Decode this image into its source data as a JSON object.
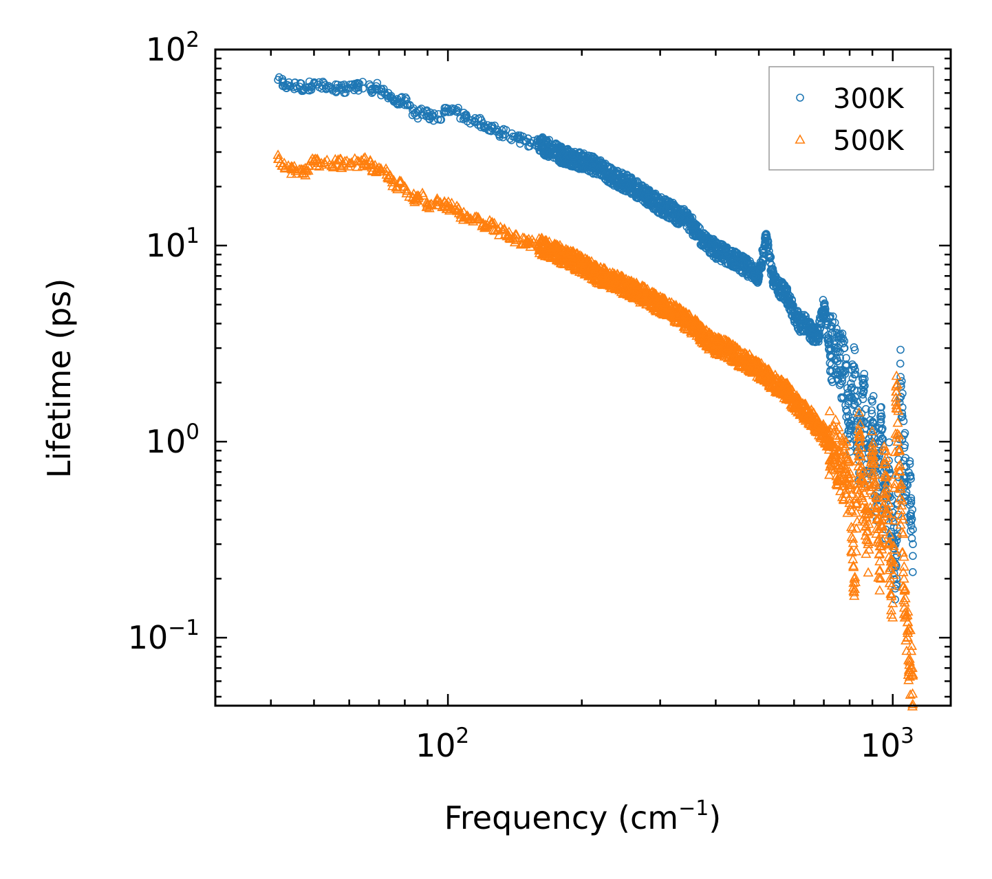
{
  "chart_data": {
    "type": "scatter",
    "title": "",
    "xlabel": "Frequency (cm",
    "xlabel_sup": "−1",
    "xlabel_end": ")",
    "ylabel": "Lifetime (ps)",
    "xscale": "log",
    "yscale": "log",
    "xlim": [
      30,
      1350
    ],
    "ylim": [
      0.045,
      100
    ],
    "x_ticks": [
      {
        "value": 100,
        "base": "10",
        "exp": "2"
      },
      {
        "value": 1000,
        "base": "10",
        "exp": "3"
      }
    ],
    "y_ticks": [
      {
        "value": 0.1,
        "base": "10",
        "exp": "−1"
      },
      {
        "value": 1,
        "base": "10",
        "exp": "0"
      },
      {
        "value": 10,
        "base": "10",
        "exp": "1"
      },
      {
        "value": 100,
        "base": "10",
        "exp": "2"
      }
    ],
    "legend_position": "top-right",
    "series": [
      {
        "name": "300K",
        "marker": "circle",
        "color": "#1f77b4",
        "x": [
          41.5,
          43,
          43.5,
          45.5,
          48,
          50,
          55,
          67,
          67.5,
          69,
          70,
          73,
          73.5,
          75,
          76,
          77,
          78,
          80,
          81,
          85,
          88,
          90,
          95,
          100,
          105,
          110,
          115,
          120,
          125,
          130,
          140,
          150,
          160,
          170,
          180,
          190,
          200,
          210,
          220,
          230,
          240,
          250,
          260,
          270,
          280,
          290,
          300,
          310,
          320,
          330,
          340,
          350,
          360,
          370,
          380,
          390,
          400,
          420,
          440,
          460,
          480,
          500,
          520,
          540,
          560,
          580,
          600,
          620,
          640,
          660,
          680,
          700,
          720,
          740,
          760,
          780,
          800,
          820,
          840,
          860,
          880,
          900,
          920,
          940,
          960,
          980,
          1000,
          1020,
          1040,
          1060,
          1080,
          1100,
          1110
        ],
        "y": [
          70,
          65,
          66,
          65,
          64,
          67,
          63,
          65,
          60,
          65,
          62,
          58,
          60,
          56,
          55,
          53,
          54,
          55,
          52,
          46,
          48,
          47,
          44,
          50,
          48,
          45,
          43,
          42,
          40,
          38,
          36,
          34,
          33,
          31,
          29,
          28,
          27,
          26,
          25,
          23,
          22,
          21,
          20,
          19,
          18,
          17,
          16,
          15.5,
          15,
          14,
          14,
          13,
          12,
          11,
          10.5,
          10,
          9.5,
          9,
          8.5,
          8,
          7.5,
          7,
          11,
          6.5,
          6,
          5.5,
          4.5,
          4,
          4,
          3.5,
          3.5,
          5,
          3,
          3,
          2.5,
          2.3,
          1.2,
          2.2,
          0.8,
          1.8,
          0.6,
          1.6,
          0.5,
          1.3,
          0.4,
          0.8,
          0.3,
          0.2,
          2.5,
          0.8,
          0.6,
          0.5,
          0.3
        ]
      },
      {
        "name": "500K",
        "marker": "triangle",
        "color": "#ff7f0e",
        "x": [
          41.5,
          43,
          45.5,
          48,
          50,
          55,
          67,
          67.5,
          69,
          70,
          73,
          73.5,
          75,
          76,
          77,
          78,
          80,
          81,
          85,
          88,
          90,
          95,
          100,
          105,
          110,
          115,
          120,
          125,
          130,
          140,
          150,
          160,
          170,
          180,
          190,
          200,
          210,
          220,
          230,
          240,
          250,
          260,
          270,
          280,
          290,
          300,
          310,
          320,
          330,
          340,
          350,
          360,
          370,
          380,
          390,
          400,
          420,
          440,
          460,
          480,
          500,
          520,
          540,
          560,
          580,
          600,
          620,
          640,
          660,
          680,
          700,
          720,
          740,
          760,
          780,
          800,
          820,
          840,
          860,
          880,
          900,
          920,
          940,
          960,
          980,
          1000,
          1020,
          1040,
          1060,
          1080,
          1100,
          1110
        ],
        "y": [
          29,
          25,
          24,
          24,
          27,
          26,
          27,
          25,
          24,
          25,
          24,
          22,
          21,
          21,
          20,
          21,
          20,
          19,
          17,
          18,
          16,
          17,
          16,
          15,
          14,
          14,
          13,
          13,
          12,
          11,
          10.5,
          10,
          9.5,
          9,
          8.5,
          8,
          7.5,
          7,
          6.8,
          6.5,
          6.2,
          6,
          5.7,
          5.5,
          5.2,
          5,
          4.8,
          4.6,
          4.4,
          4.2,
          4,
          3.8,
          3.6,
          3.4,
          3.2,
          3.1,
          3,
          2.8,
          2.6,
          2.5,
          2.3,
          2.2,
          2,
          1.9,
          1.8,
          1.6,
          1.5,
          1.4,
          1.3,
          1.2,
          1.1,
          1.0,
          0.9,
          0.8,
          0.7,
          0.6,
          0.2,
          1.0,
          0.5,
          0.3,
          0.9,
          0.4,
          0.2,
          0.8,
          0.3,
          0.15,
          1.8,
          0.6,
          0.2,
          0.1,
          0.07,
          0.065
        ]
      }
    ]
  }
}
